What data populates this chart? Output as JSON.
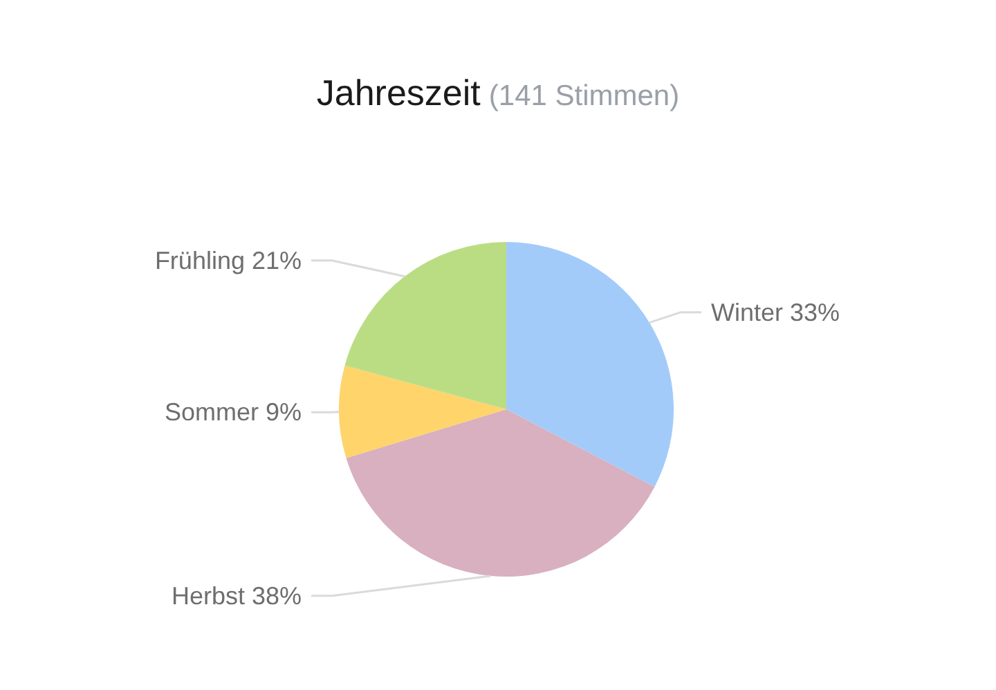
{
  "chart_data": {
    "type": "pie",
    "title": "Jahreszeit",
    "subtitle": "(141 Stimmen)",
    "categories": [
      "Winter",
      "Herbst",
      "Sommer",
      "Frühling"
    ],
    "values": [
      33,
      38,
      9,
      21
    ],
    "value_labels": [
      "33%",
      "38%",
      "9%",
      "21%"
    ],
    "colors": [
      "#a3cbfa",
      "#d8b0bf",
      "#fed46b",
      "#badd83"
    ]
  }
}
